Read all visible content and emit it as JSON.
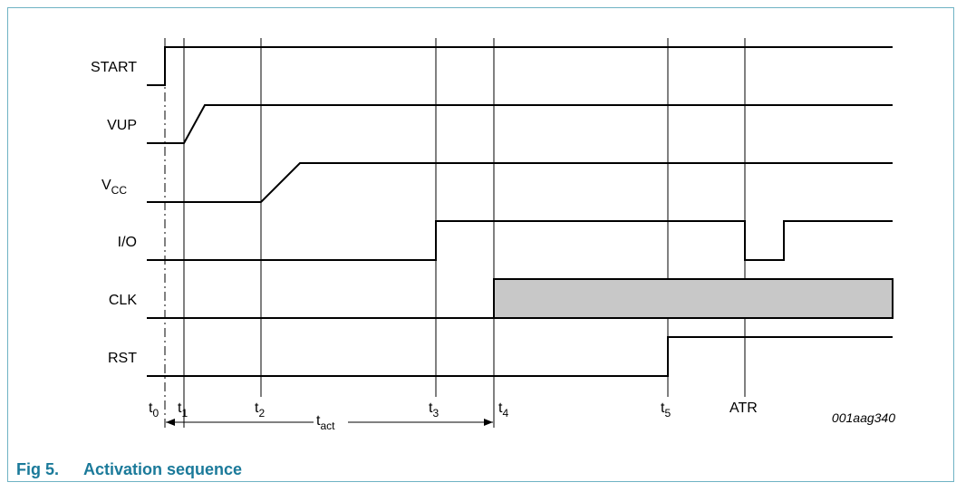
{
  "signals": {
    "start": "START",
    "vup": "VUP",
    "vcc_main": "V",
    "vcc_sub": "CC",
    "io": "I/O",
    "clk": "CLK",
    "rst": "RST"
  },
  "times": {
    "t0": {
      "main": "t",
      "sub": "0"
    },
    "t1": {
      "main": "t",
      "sub": "1"
    },
    "t2": {
      "main": "t",
      "sub": "2"
    },
    "t3": {
      "main": "t",
      "sub": "3"
    },
    "t4": {
      "main": "t",
      "sub": "4"
    },
    "t5": {
      "main": "t",
      "sub": "5"
    },
    "atr": "ATR"
  },
  "tact": {
    "main": "t",
    "sub": "act"
  },
  "figure_code": "001aag340",
  "caption": {
    "number": "Fig 5.",
    "title": "Activation sequence"
  },
  "colors": {
    "caption": "#1b7a9a",
    "frame": "#6fb3c4",
    "clk_fill": "#c8c8c8"
  }
}
